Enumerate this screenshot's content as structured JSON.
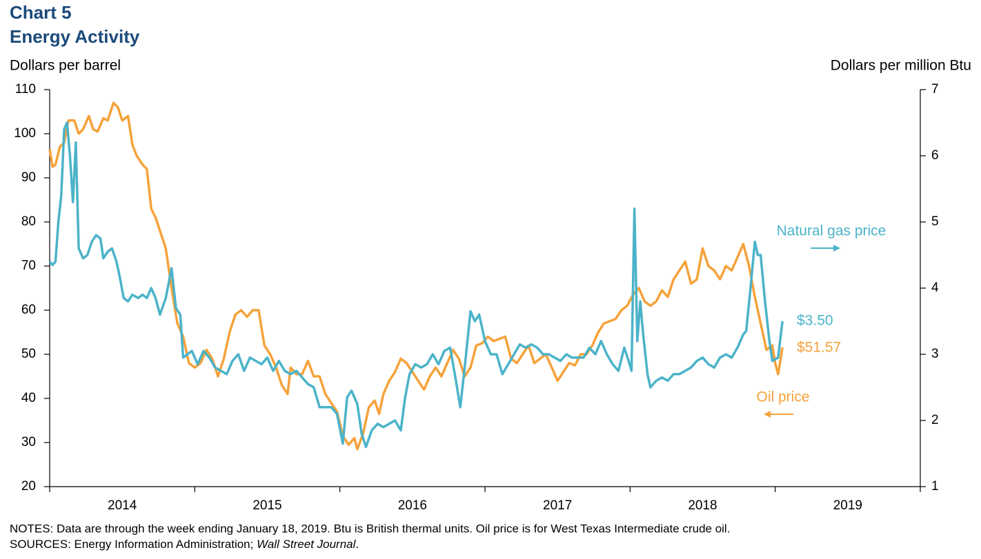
{
  "chart_data": {
    "type": "line",
    "title": "Chart 5",
    "subtitle": "Energy Activity",
    "ylabel": "Dollars per barrel",
    "y2label": "Dollars per million Btu",
    "notes": "NOTES: Data are through  the week ending  January 18, 2019. Btu is British thermal units. Oil price is for West Texas Intermediate crude oil.",
    "sources": [
      "SOURCES: Energy Information Administration; ",
      "Wall Street Journal",
      "."
    ],
    "xlim": [
      2014,
      2020
    ],
    "xtick_marks": [
      2014,
      2015,
      2016,
      2017,
      2018,
      2019,
      2020
    ],
    "xticks": [
      {
        "value": 2014.5,
        "label": "2014"
      },
      {
        "value": 2015.5,
        "label": "2015"
      },
      {
        "value": 2016.5,
        "label": "2016"
      },
      {
        "value": 2017.5,
        "label": "2017"
      },
      {
        "value": 2018.5,
        "label": "2018"
      },
      {
        "value": 2019.5,
        "label": "2019"
      }
    ],
    "ylim": [
      20,
      110
    ],
    "yticks": [
      20,
      30,
      40,
      50,
      60,
      70,
      80,
      90,
      100,
      110
    ],
    "y2lim": [
      1,
      7
    ],
    "y2ticks": [
      1,
      2,
      3,
      4,
      5,
      6,
      7
    ],
    "grid": false,
    "series": [
      {
        "name": "Oil price",
        "color": "#f5a23a",
        "axis": "y",
        "end_label": "$51.57",
        "x": [
          2014.0,
          2014.02,
          2014.04,
          2014.07,
          2014.1,
          2014.13,
          2014.17,
          2014.2,
          2014.23,
          2014.27,
          2014.3,
          2014.33,
          2014.37,
          2014.4,
          2014.44,
          2014.47,
          2014.5,
          2014.54,
          2014.57,
          2014.6,
          2014.64,
          2014.67,
          2014.7,
          2014.73,
          2014.77,
          2014.8,
          2014.84,
          2014.88,
          2014.92,
          2014.96,
          2015.0,
          2015.04,
          2015.08,
          2015.12,
          2015.16,
          2015.2,
          2015.24,
          2015.28,
          2015.32,
          2015.36,
          2015.4,
          2015.44,
          2015.48,
          2015.52,
          2015.56,
          2015.6,
          2015.64,
          2015.66,
          2015.7,
          2015.74,
          2015.78,
          2015.82,
          2015.86,
          2015.9,
          2015.94,
          2015.98,
          2016.02,
          2016.06,
          2016.1,
          2016.12,
          2016.16,
          2016.2,
          2016.24,
          2016.27,
          2016.3,
          2016.34,
          2016.38,
          2016.42,
          2016.46,
          2016.5,
          2016.54,
          2016.58,
          2016.62,
          2016.66,
          2016.7,
          2016.74,
          2016.78,
          2016.82,
          2016.86,
          2016.9,
          2016.94,
          2016.98,
          2017.02,
          2017.06,
          2017.1,
          2017.14,
          2017.18,
          2017.22,
          2017.26,
          2017.3,
          2017.34,
          2017.38,
          2017.42,
          2017.46,
          2017.5,
          2017.54,
          2017.58,
          2017.62,
          2017.66,
          2017.7,
          2017.74,
          2017.78,
          2017.82,
          2017.86,
          2017.9,
          2017.94,
          2017.98,
          2018.02,
          2018.06,
          2018.1,
          2018.14,
          2018.18,
          2018.22,
          2018.26,
          2018.3,
          2018.34,
          2018.38,
          2018.42,
          2018.46,
          2018.5,
          2018.54,
          2018.58,
          2018.62,
          2018.66,
          2018.7,
          2018.74,
          2018.78,
          2018.82,
          2018.86,
          2018.9,
          2018.94,
          2018.98,
          2019.0,
          2019.02,
          2019.05
        ],
        "values": [
          96.5,
          92.5,
          93,
          97,
          98,
          103,
          103,
          100,
          101,
          104,
          101,
          100.5,
          103.5,
          103,
          107,
          106,
          103,
          104,
          97.5,
          95,
          93,
          92,
          83,
          81,
          77,
          74,
          65,
          57,
          54,
          48,
          47,
          48,
          51,
          49,
          45,
          49,
          55,
          59,
          60,
          58.5,
          60,
          60,
          52,
          50,
          47,
          43,
          41,
          47,
          45.5,
          45.5,
          48.5,
          45,
          45,
          41,
          39,
          37,
          31.5,
          29.5,
          31,
          28.5,
          32,
          38,
          39.5,
          36.5,
          41,
          44,
          46,
          49,
          48,
          46,
          44,
          42,
          45,
          47,
          45,
          48,
          51,
          49,
          45,
          47,
          52,
          52.5,
          54,
          53,
          53.5,
          54,
          49,
          48,
          50,
          52,
          48,
          49,
          50,
          47,
          44,
          46,
          48,
          47.5,
          50,
          50,
          52,
          55,
          57,
          57.5,
          58,
          60,
          61,
          63.5,
          65,
          62,
          61,
          62,
          64.5,
          63,
          67,
          69,
          71,
          66,
          67,
          74,
          70,
          69,
          67,
          70,
          69,
          72,
          75,
          70,
          63,
          57,
          51,
          52,
          48,
          45.5,
          51.57
        ]
      },
      {
        "name": "Natural gas price",
        "color": "#4bb3c9",
        "axis": "y2",
        "end_label": "$3.50",
        "x": [
          2014.0,
          2014.02,
          2014.04,
          2014.06,
          2014.08,
          2014.1,
          2014.12,
          2014.14,
          2014.16,
          2014.18,
          2014.2,
          2014.23,
          2014.26,
          2014.29,
          2014.32,
          2014.35,
          2014.37,
          2014.4,
          2014.43,
          2014.46,
          2014.48,
          2014.51,
          2014.54,
          2014.57,
          2014.61,
          2014.64,
          2014.67,
          2014.7,
          2014.73,
          2014.76,
          2014.8,
          2014.84,
          2014.87,
          2014.9,
          2014.92,
          2014.95,
          2014.98,
          2015.02,
          2015.06,
          2015.1,
          2015.14,
          2015.18,
          2015.22,
          2015.26,
          2015.3,
          2015.34,
          2015.38,
          2015.42,
          2015.46,
          2015.5,
          2015.54,
          2015.58,
          2015.62,
          2015.66,
          2015.7,
          2015.74,
          2015.78,
          2015.82,
          2015.86,
          2015.9,
          2015.94,
          2015.98,
          2016.02,
          2016.05,
          2016.08,
          2016.12,
          2016.15,
          2016.18,
          2016.22,
          2016.26,
          2016.3,
          2016.34,
          2016.38,
          2016.42,
          2016.45,
          2016.48,
          2016.52,
          2016.56,
          2016.6,
          2016.64,
          2016.68,
          2016.72,
          2016.76,
          2016.8,
          2016.83,
          2016.86,
          2016.9,
          2016.93,
          2016.96,
          2017.0,
          2017.04,
          2017.08,
          2017.12,
          2017.16,
          2017.2,
          2017.24,
          2017.28,
          2017.32,
          2017.36,
          2017.4,
          2017.44,
          2017.48,
          2017.52,
          2017.56,
          2017.6,
          2017.64,
          2017.68,
          2017.72,
          2017.76,
          2017.8,
          2017.84,
          2017.88,
          2017.92,
          2017.96,
          2017.99,
          2018.01,
          2018.03,
          2018.05,
          2018.07,
          2018.09,
          2018.12,
          2018.14,
          2018.18,
          2018.22,
          2018.26,
          2018.3,
          2018.34,
          2018.38,
          2018.42,
          2018.46,
          2018.5,
          2018.54,
          2018.58,
          2018.62,
          2018.66,
          2018.7,
          2018.74,
          2018.78,
          2018.8,
          2018.83,
          2018.86,
          2018.88,
          2018.9,
          2018.93,
          2018.96,
          2018.98,
          2019.02,
          2019.05
        ],
        "values": [
          4.4,
          4.35,
          4.4,
          5.0,
          5.4,
          6.4,
          6.5,
          6.0,
          5.3,
          6.2,
          4.6,
          4.45,
          4.5,
          4.7,
          4.8,
          4.75,
          4.45,
          4.55,
          4.6,
          4.4,
          4.2,
          3.85,
          3.8,
          3.9,
          3.85,
          3.9,
          3.85,
          4.0,
          3.85,
          3.6,
          3.85,
          4.3,
          3.7,
          3.6,
          2.95,
          3.0,
          3.05,
          2.85,
          3.05,
          2.95,
          2.8,
          2.75,
          2.7,
          2.9,
          3.0,
          2.75,
          2.95,
          2.9,
          2.85,
          2.95,
          2.75,
          2.9,
          2.75,
          2.7,
          2.75,
          2.65,
          2.55,
          2.5,
          2.2,
          2.2,
          2.2,
          2.1,
          1.65,
          2.35,
          2.45,
          2.25,
          1.8,
          1.6,
          1.85,
          1.95,
          1.9,
          1.95,
          2.0,
          1.85,
          2.35,
          2.7,
          2.85,
          2.8,
          2.85,
          3.0,
          2.85,
          3.05,
          3.1,
          2.6,
          2.2,
          2.8,
          3.65,
          3.5,
          3.6,
          3.2,
          3.0,
          3.0,
          2.7,
          2.85,
          3.0,
          3.15,
          3.1,
          3.15,
          3.1,
          3.0,
          3.0,
          2.95,
          2.9,
          3.0,
          2.95,
          2.95,
          2.95,
          3.1,
          3.0,
          3.2,
          3.0,
          2.85,
          2.75,
          3.1,
          2.9,
          2.75,
          5.2,
          3.2,
          3.8,
          3.3,
          2.7,
          2.5,
          2.6,
          2.65,
          2.6,
          2.7,
          2.7,
          2.75,
          2.8,
          2.9,
          2.95,
          2.85,
          2.8,
          2.95,
          3.0,
          2.95,
          3.1,
          3.3,
          3.35,
          4.0,
          4.7,
          4.5,
          4.5,
          3.8,
          3.2,
          2.9,
          2.95,
          3.5
        ]
      }
    ]
  }
}
